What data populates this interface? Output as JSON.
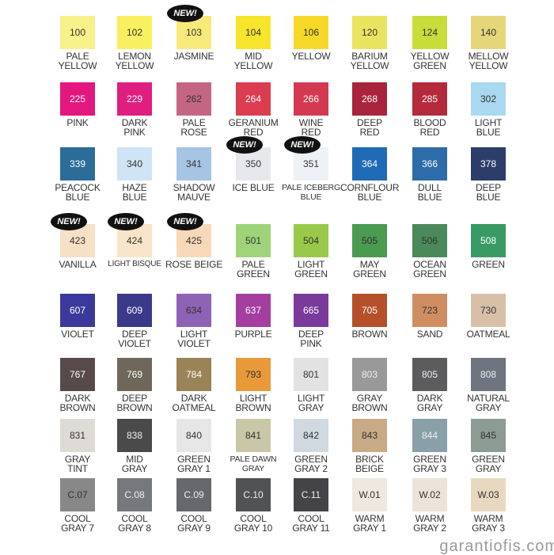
{
  "badge_text": "NEW!",
  "watermark": "garantiofis.com",
  "rows": [
    [
      {
        "code": "100",
        "name": "PALE\nYELLOW",
        "color": "#f8f08a",
        "text": "#333"
      },
      {
        "code": "102",
        "name": "LEMON\nYELLOW",
        "color": "#f8f060",
        "text": "#333"
      },
      {
        "code": "103",
        "name": "JASMINE",
        "color": "#f7e97a",
        "text": "#333",
        "new": true
      },
      {
        "code": "104",
        "name": "MID\nYELLOW",
        "color": "#f6e52a",
        "text": "#333"
      },
      {
        "code": "106",
        "name": "YELLOW",
        "color": "#f6d928",
        "text": "#333"
      },
      {
        "code": "120",
        "name": "BARIUM\nYELLOW",
        "color": "#e8e460",
        "text": "#333"
      },
      {
        "code": "124",
        "name": "YELLOW\nGREEN",
        "color": "#c7dd3a",
        "text": "#333"
      },
      {
        "code": "140",
        "name": "MELLOW\nYELLOW",
        "color": "#e5d67a",
        "text": "#333"
      }
    ],
    [
      {
        "code": "225",
        "name": "PINK",
        "color": "#e3177f",
        "text": "#fff"
      },
      {
        "code": "229",
        "name": "DARK\nPINK",
        "color": "#e01e80",
        "text": "#fff"
      },
      {
        "code": "262",
        "name": "PALE\nROSE",
        "color": "#c46682",
        "text": "#333"
      },
      {
        "code": "264",
        "name": "GERANIUM\nRED",
        "color": "#dc3c50",
        "text": "#fff"
      },
      {
        "code": "266",
        "name": "WINE\nRED",
        "color": "#d33a52",
        "text": "#fff"
      },
      {
        "code": "268",
        "name": "DEEP\nRED",
        "color": "#a8243c",
        "text": "#fff"
      },
      {
        "code": "285",
        "name": "BLOOD\nRED",
        "color": "#b42a3c",
        "text": "#fff"
      },
      {
        "code": "302",
        "name": "LIGHT\nBLUE",
        "color": "#a9d8f0",
        "text": "#333"
      }
    ],
    [
      {
        "code": "339",
        "name": "PEACOCK\nBLUE",
        "color": "#2c6c99",
        "text": "#fff"
      },
      {
        "code": "340",
        "name": "HAZE\nBLUE",
        "color": "#cfe4f4",
        "text": "#333"
      },
      {
        "code": "341",
        "name": "SHADOW\nMAUVE",
        "color": "#a6c4e4",
        "text": "#333"
      },
      {
        "code": "350",
        "name": "ICE BLUE",
        "color": "#e6e8ec",
        "text": "#333",
        "new": true
      },
      {
        "code": "351",
        "name": "PALE ICEBERG\nBLUE",
        "color": "#eef2f6",
        "text": "#333",
        "new": true
      },
      {
        "code": "364",
        "name": "CORNFLOUR\nBLUE",
        "color": "#1f6bb6",
        "text": "#fff"
      },
      {
        "code": "366",
        "name": "DULL\nBLUE",
        "color": "#2d6ca8",
        "text": "#fff"
      },
      {
        "code": "378",
        "name": "DEEP\nBLUE",
        "color": "#2d3d6a",
        "text": "#fff"
      }
    ],
    [
      {
        "code": "423",
        "name": "VANILLA",
        "color": "#f6e0c6",
        "text": "#333",
        "new": true
      },
      {
        "code": "424",
        "name": "LIGHT BISQUE",
        "color": "#f8e4c8",
        "text": "#333",
        "new": true
      },
      {
        "code": "425",
        "name": "ROSE BEIGE",
        "color": "#f7d8b8",
        "text": "#333",
        "new": true
      },
      {
        "code": "501",
        "name": "PALE\nGREEN",
        "color": "#9fd37a",
        "text": "#333"
      },
      {
        "code": "504",
        "name": "LIGHT\nGREEN",
        "color": "#99c94a",
        "text": "#333"
      },
      {
        "code": "505",
        "name": "MAY\nGREEN",
        "color": "#4a9a50",
        "text": "#333"
      },
      {
        "code": "506",
        "name": "OCEAN\nGREEN",
        "color": "#4a8a5a",
        "text": "#333"
      },
      {
        "code": "508",
        "name": "GREEN",
        "color": "#3a9a64",
        "text": "#fff"
      }
    ],
    [
      {
        "code": "607",
        "name": "VIOLET",
        "color": "#3b3a9c",
        "text": "#fff"
      },
      {
        "code": "609",
        "name": "DEEP\nVIOLET",
        "color": "#3b3a8a",
        "text": "#fff"
      },
      {
        "code": "634",
        "name": "LIGHT\nVIOLET",
        "color": "#8e62b4",
        "text": "#333"
      },
      {
        "code": "637",
        "name": "PURPLE",
        "color": "#a43ea0",
        "text": "#fff"
      },
      {
        "code": "665",
        "name": "DEEP\nPINK",
        "color": "#7a3a9c",
        "text": "#fff"
      },
      {
        "code": "705",
        "name": "BROWN",
        "color": "#b4512a",
        "text": "#fff"
      },
      {
        "code": "723",
        "name": "SAND",
        "color": "#cf8e62",
        "text": "#333"
      },
      {
        "code": "730",
        "name": "OATMEAL",
        "color": "#d8c0a8",
        "text": "#333"
      }
    ],
    [
      {
        "code": "767",
        "name": "DARK\nBROWN",
        "color": "#574a48",
        "text": "#fff"
      },
      {
        "code": "769",
        "name": "DEEP\nBROWN",
        "color": "#6f685a",
        "text": "#fff"
      },
      {
        "code": "784",
        "name": "DARK\nOATMEAL",
        "color": "#9a8356",
        "text": "#fff"
      },
      {
        "code": "793",
        "name": "LIGHT\nBROWN",
        "color": "#e89a3a",
        "text": "#333"
      },
      {
        "code": "801",
        "name": "LIGHT\nGRAY",
        "color": "#e2e2e2",
        "text": "#333"
      },
      {
        "code": "803",
        "name": "GRAY\nBROWN",
        "color": "#999999",
        "text": "#eee"
      },
      {
        "code": "805",
        "name": "DARK\nGRAY",
        "color": "#5c5c5e",
        "text": "#eee"
      },
      {
        "code": "808",
        "name": "NATURAL\nGRAY",
        "color": "#6e7480",
        "text": "#eee"
      }
    ],
    [
      {
        "code": "831",
        "name": "GRAY\nTINT",
        "color": "#dedad6",
        "text": "#333"
      },
      {
        "code": "838",
        "name": "MID\nGRAY",
        "color": "#4a4a4a",
        "text": "#eee"
      },
      {
        "code": "840",
        "name": "GREEN\nGRAY 1",
        "color": "#e6e6e6",
        "text": "#333"
      },
      {
        "code": "841",
        "name": "PALE DAWN\nGRAY",
        "color": "#c8c8a8",
        "text": "#333"
      },
      {
        "code": "842",
        "name": "GREEN\nGRAY 2",
        "color": "#d0d8e0",
        "text": "#333"
      },
      {
        "code": "843",
        "name": "BRICK\nBEIGE",
        "color": "#c8aa86",
        "text": "#333"
      },
      {
        "code": "844",
        "name": "GREEN\nGRAY 3",
        "color": "#8aa0a8",
        "text": "#eee"
      },
      {
        "code": "845",
        "name": "GREEN\nGRAY",
        "color": "#8c9c94",
        "text": "#333"
      }
    ],
    [
      {
        "code": "C.07",
        "name": "COOL\nGRAY 7",
        "color": "#888888",
        "text": "#333"
      },
      {
        "code": "C.08",
        "name": "COOL\nGRAY 8",
        "color": "#76787c",
        "text": "#eee"
      },
      {
        "code": "C.09",
        "name": "COOL\nGRAY 9",
        "color": "#66686c",
        "text": "#eee"
      },
      {
        "code": "C.10",
        "name": "COOL\nGRAY 10",
        "color": "#505254",
        "text": "#eee"
      },
      {
        "code": "C.11",
        "name": "COOL\nGRAY 11",
        "color": "#444446",
        "text": "#eee"
      },
      {
        "code": "W.01",
        "name": "WARM\nGRAY 1",
        "color": "#efe8e0",
        "text": "#333"
      },
      {
        "code": "W.02",
        "name": "WARM\nGRAY 2",
        "color": "#ece4d8",
        "text": "#333"
      },
      {
        "code": "W.03",
        "name": "WARM\nGRAY 3",
        "color": "#e8d8c0",
        "text": "#333"
      }
    ]
  ]
}
